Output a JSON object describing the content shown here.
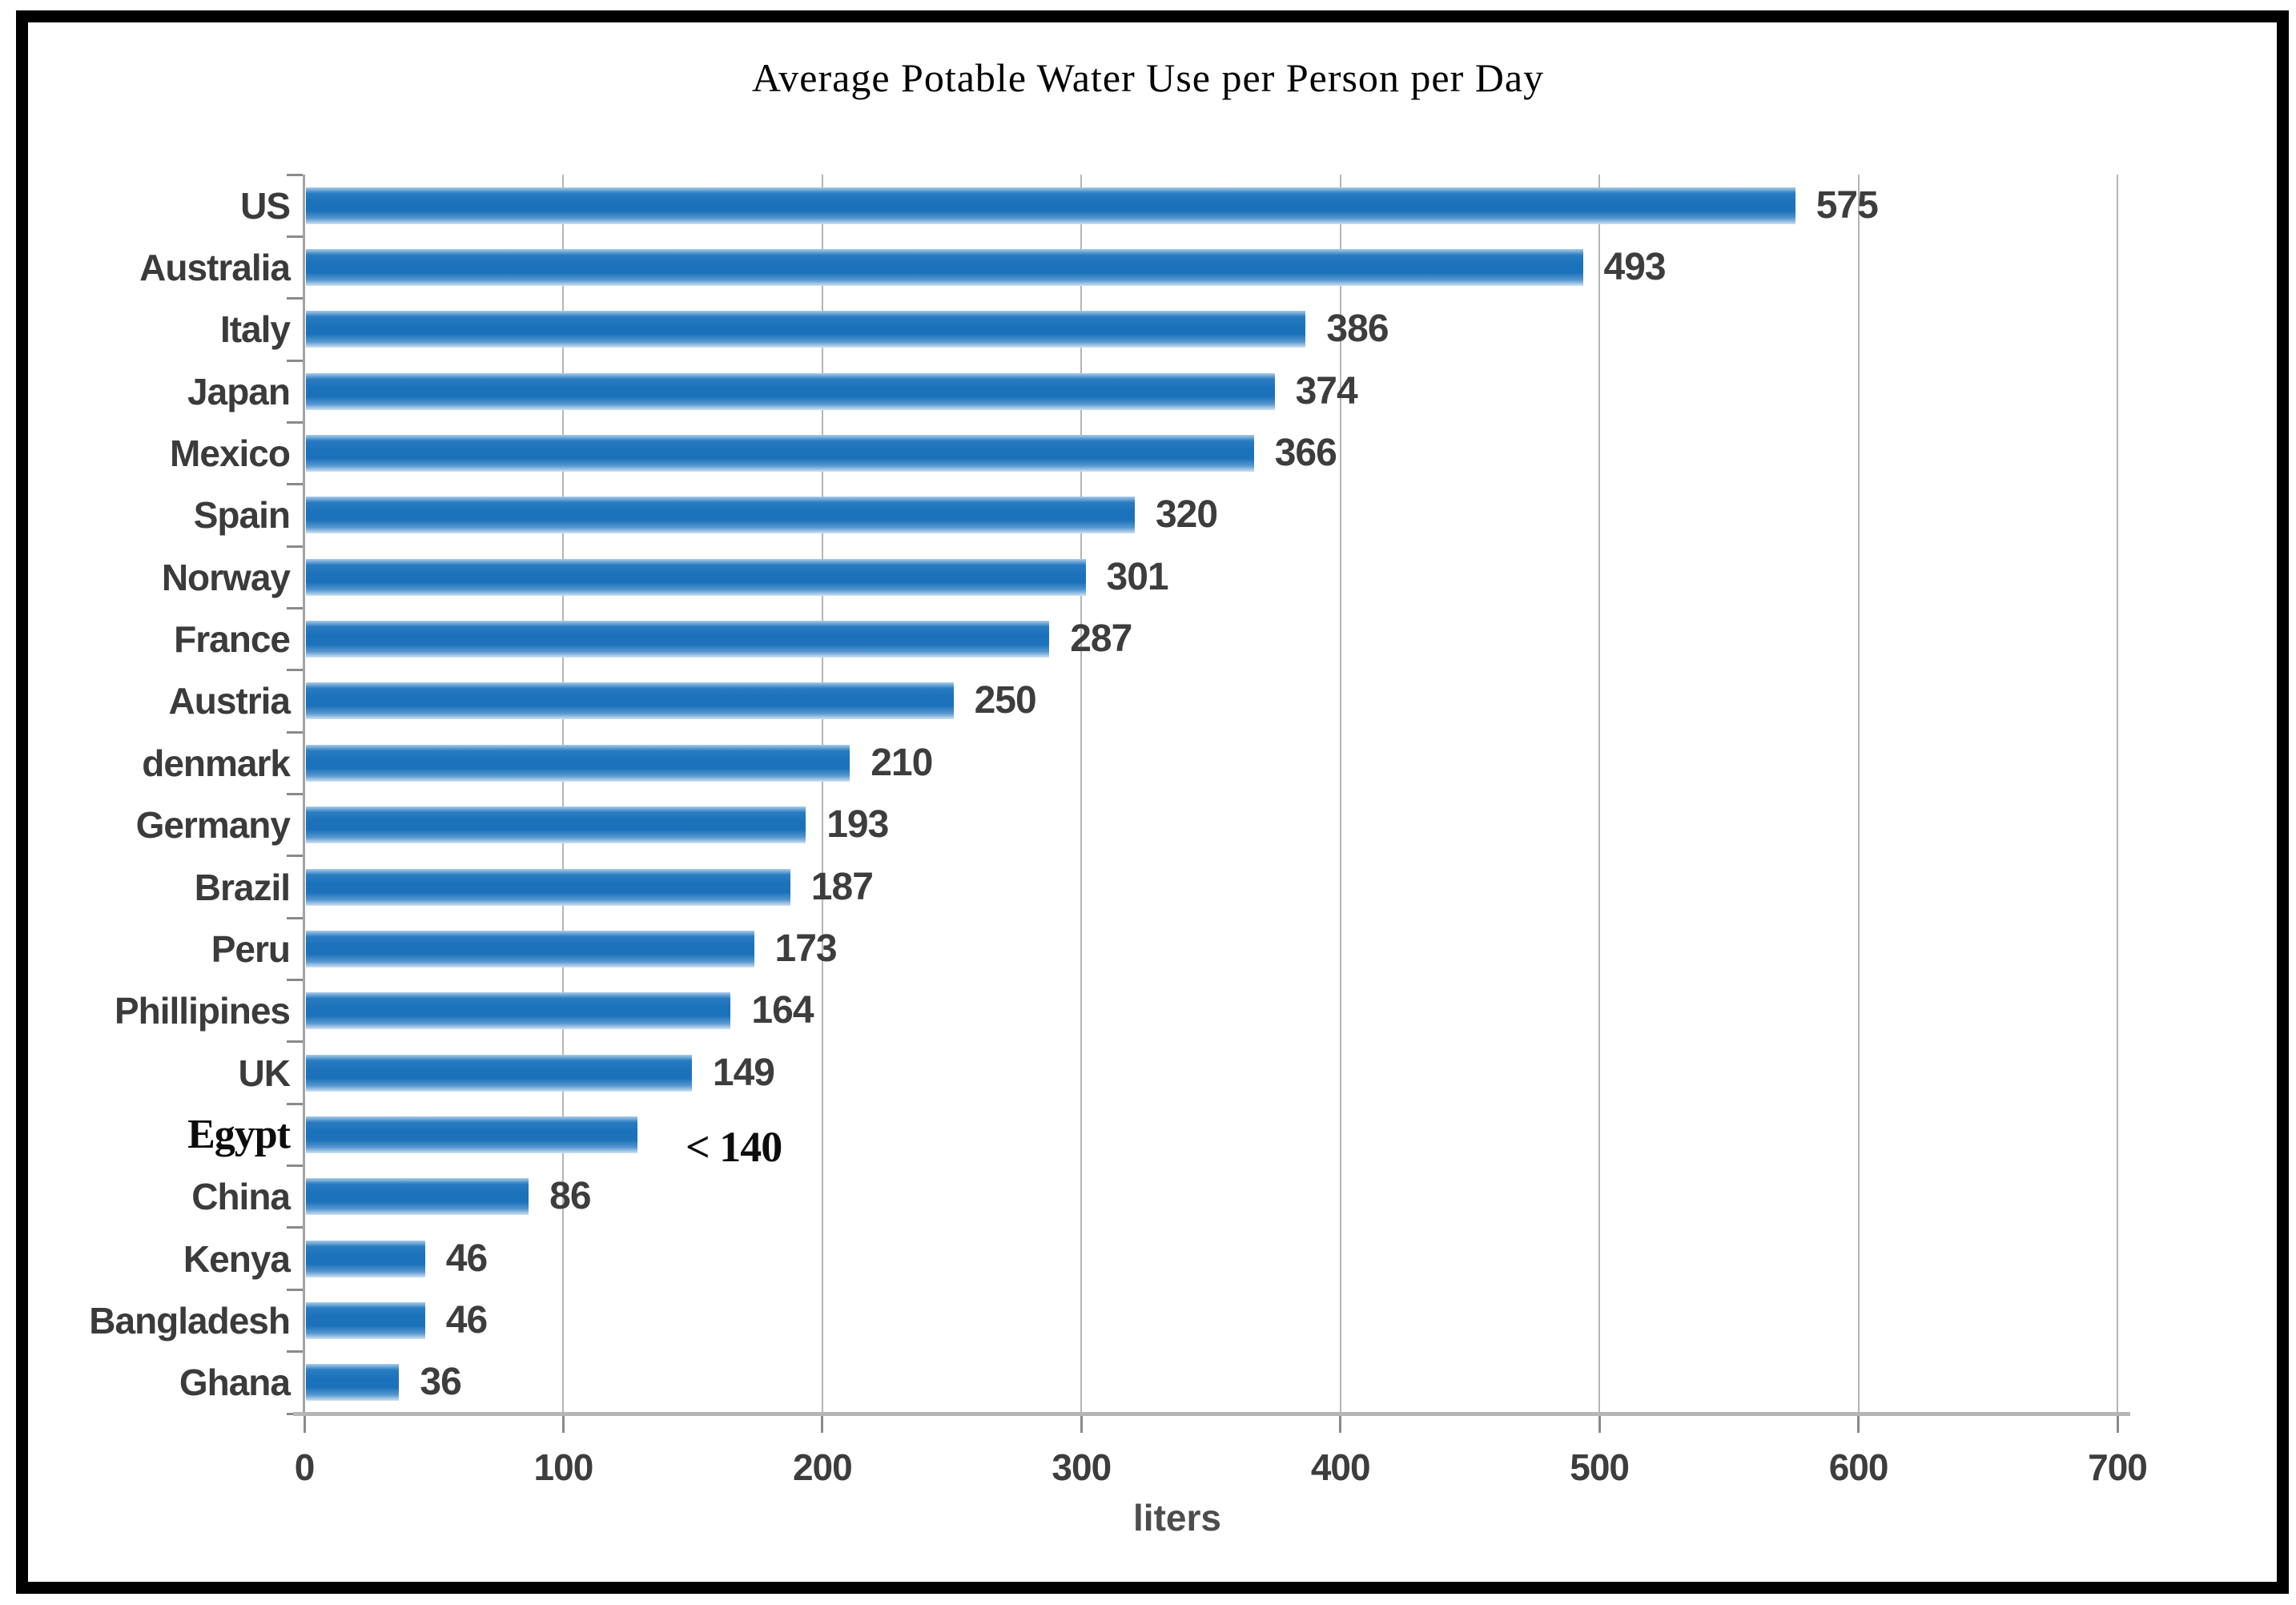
{
  "frame": {
    "border_color": "#000000",
    "background_color": "#ffffff"
  },
  "chart_data": {
    "type": "bar",
    "orientation": "horizontal",
    "title": "Average Potable Water Use per Person per Day",
    "xlabel": "liters",
    "xlim": [
      0,
      700
    ],
    "x_ticks": [
      0,
      100,
      200,
      300,
      400,
      500,
      600,
      700
    ],
    "gridlines": "vertical light-gray line at every 100 liters",
    "legend": "none",
    "bar_color_main": "#1b72ba",
    "bar_color_edge_fade": "#cfe2f2",
    "axis_color": "#a3a3a3",
    "text_color": "#3b3b3b",
    "items": [
      {
        "name": "US",
        "value": 575,
        "label": "575"
      },
      {
        "name": "Australia",
        "value": 493,
        "label": "493"
      },
      {
        "name": "Italy",
        "value": 386,
        "label": "386"
      },
      {
        "name": "Japan",
        "value": 374,
        "label": "374"
      },
      {
        "name": "Mexico",
        "value": 366,
        "label": "366"
      },
      {
        "name": "Spain",
        "value": 320,
        "label": "320"
      },
      {
        "name": "Norway",
        "value": 301,
        "label": "301"
      },
      {
        "name": "France",
        "value": 287,
        "label": "287"
      },
      {
        "name": "Austria",
        "value": 250,
        "label": "250"
      },
      {
        "name": "denmark",
        "value": 210,
        "label": "210"
      },
      {
        "name": "Germany",
        "value": 193,
        "label": "193"
      },
      {
        "name": "Brazil",
        "value": 187,
        "label": "187"
      },
      {
        "name": "Peru",
        "value": 173,
        "label": "173"
      },
      {
        "name": "Phillipines",
        "value": 164,
        "label": "164"
      },
      {
        "name": "UK",
        "value": 149,
        "label": "149"
      },
      {
        "name": "Egypt",
        "value": 140,
        "label": "< 140",
        "bar_length": 128,
        "annotation_style": "serif"
      },
      {
        "name": "China",
        "value": 86,
        "label": "86"
      },
      {
        "name": "Kenya",
        "value": 46,
        "label": "46"
      },
      {
        "name": "Bangladesh",
        "value": 46,
        "label": "46"
      },
      {
        "name": "Ghana",
        "value": 36,
        "label": "36"
      }
    ]
  }
}
